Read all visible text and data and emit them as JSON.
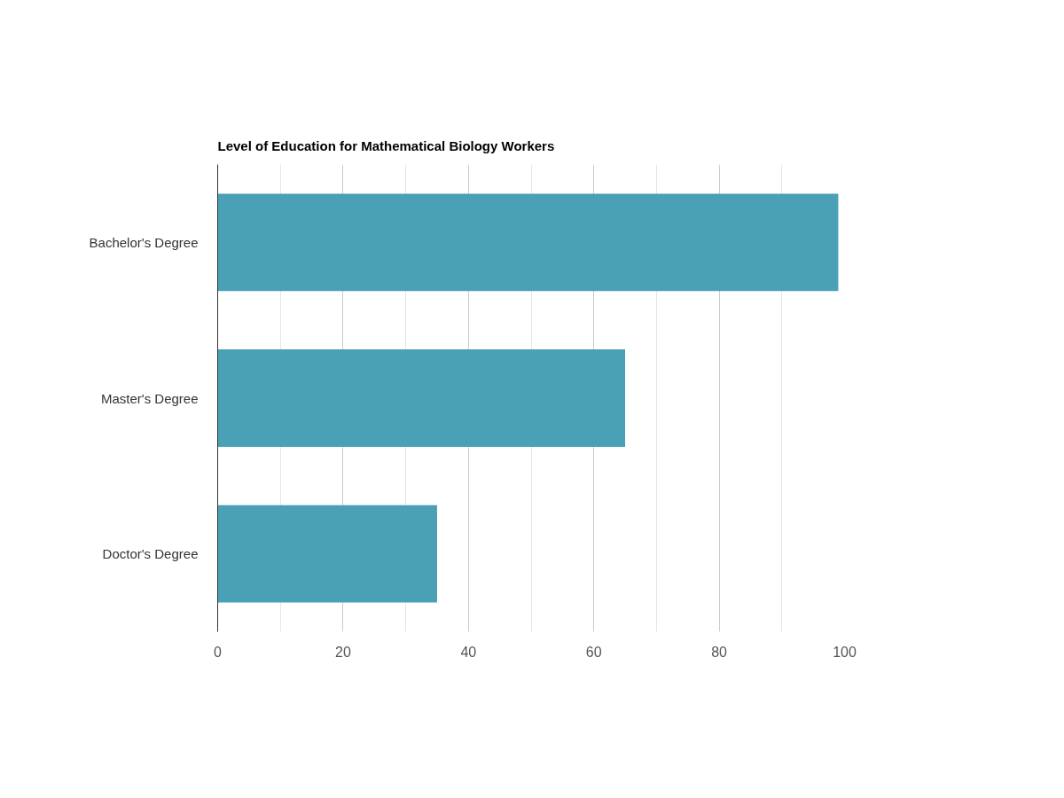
{
  "chart_data": {
    "type": "bar",
    "orientation": "horizontal",
    "title": "Level of Education for Mathematical Biology Workers",
    "categories": [
      "Bachelor's Degree",
      "Master's Degree",
      "Doctor's Degree"
    ],
    "values": [
      99,
      65,
      35
    ],
    "color": "#4aa0b4",
    "xlim": [
      0,
      100
    ],
    "xticks": [
      0,
      {
        "value": 10,
        "label": null
      },
      20,
      {
        "value": 30,
        "label": null
      },
      40,
      {
        "value": 50,
        "label": null
      },
      60,
      {
        "value": 70,
        "label": null
      },
      80,
      {
        "value": 90,
        "label": null
      },
      100
    ],
    "grid": "x"
  }
}
